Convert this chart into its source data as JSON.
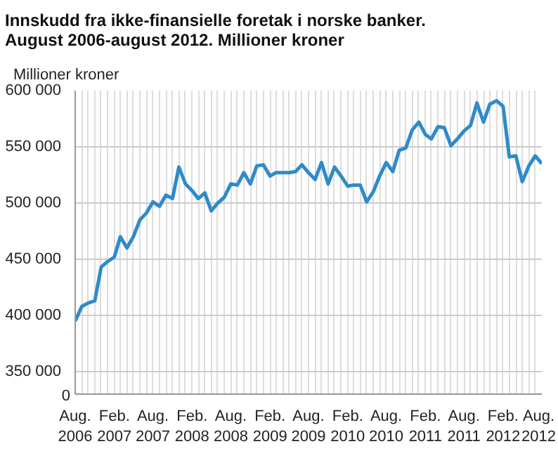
{
  "chart_data": {
    "type": "line",
    "annotations": [
      "0"
    ],
    "title": "Innskudd fra ikke-finansielle foretak i norske banker. August 2006-august 2012. Millioner kroner",
    "ylabel": "Millioner kroner",
    "x": [
      "2006-08",
      "2006-09",
      "2006-10",
      "2006-11",
      "2006-12",
      "2007-01",
      "2007-02",
      "2007-03",
      "2007-04",
      "2007-05",
      "2007-06",
      "2007-07",
      "2007-08",
      "2007-09",
      "2007-10",
      "2007-11",
      "2007-12",
      "2008-01",
      "2008-02",
      "2008-03",
      "2008-04",
      "2008-05",
      "2008-06",
      "2008-07",
      "2008-08",
      "2008-09",
      "2008-10",
      "2008-11",
      "2008-12",
      "2009-01",
      "2009-02",
      "2009-03",
      "2009-04",
      "2009-05",
      "2009-06",
      "2009-07",
      "2009-08",
      "2009-09",
      "2009-10",
      "2009-11",
      "2009-12",
      "2010-01",
      "2010-02",
      "2010-03",
      "2010-04",
      "2010-05",
      "2010-06",
      "2010-07",
      "2010-08",
      "2010-09",
      "2010-10",
      "2010-11",
      "2010-12",
      "2011-01",
      "2011-02",
      "2011-03",
      "2011-04",
      "2011-05",
      "2011-06",
      "2011-07",
      "2011-08",
      "2011-09",
      "2011-10",
      "2011-11",
      "2011-12",
      "2012-01",
      "2012-02",
      "2012-03",
      "2012-04",
      "2012-05",
      "2012-06",
      "2012-07",
      "2012-08"
    ],
    "series": [
      {
        "color": "#2f8bc9",
        "values": [
          395000,
          408000,
          411000,
          413000,
          443000,
          448000,
          452000,
          470000,
          460000,
          470000,
          485000,
          491000,
          501000,
          497000,
          507000,
          504000,
          532000,
          517000,
          511000,
          504000,
          509000,
          493000,
          500000,
          505000,
          517000,
          516000,
          527000,
          517000,
          533000,
          534000,
          524000,
          527000,
          527000,
          527000,
          528000,
          534000,
          527000,
          521000,
          536000,
          517000,
          532000,
          524000,
          515000,
          516000,
          516000,
          501000,
          510000,
          524000,
          536000,
          528000,
          547000,
          549000,
          565000,
          572000,
          561000,
          557000,
          568000,
          567000,
          551000,
          557000,
          564000,
          569000,
          589000,
          572000,
          588000,
          591000,
          586000,
          541000,
          542000,
          519000,
          533000,
          542000,
          535000
        ]
      }
    ],
    "xlim": [
      "2006-08",
      "2012-08"
    ],
    "xticks": [
      {
        "value": "2006-08",
        "label": "Aug.\n2006"
      },
      {
        "value": "2006-09",
        "label": null
      },
      {
        "value": "2006-10",
        "label": null
      },
      {
        "value": "2006-11",
        "label": null
      },
      {
        "value": "2006-12",
        "label": null
      },
      {
        "value": "2007-01",
        "label": null
      },
      {
        "value": "2007-02",
        "label": "Feb.\n2007"
      },
      {
        "value": "2007-03",
        "label": null
      },
      {
        "value": "2007-04",
        "label": null
      },
      {
        "value": "2007-05",
        "label": null
      },
      {
        "value": "2007-06",
        "label": null
      },
      {
        "value": "2007-07",
        "label": null
      },
      {
        "value": "2007-08",
        "label": "Aug.\n2007"
      },
      {
        "value": "2007-09",
        "label": null
      },
      {
        "value": "2007-10",
        "label": null
      },
      {
        "value": "2007-11",
        "label": null
      },
      {
        "value": "2007-12",
        "label": null
      },
      {
        "value": "2008-01",
        "label": null
      },
      {
        "value": "2008-02",
        "label": "Feb.\n2008"
      },
      {
        "value": "2008-03",
        "label": null
      },
      {
        "value": "2008-04",
        "label": null
      },
      {
        "value": "2008-05",
        "label": null
      },
      {
        "value": "2008-06",
        "label": null
      },
      {
        "value": "2008-07",
        "label": null
      },
      {
        "value": "2008-08",
        "label": "Aug.\n2008"
      },
      {
        "value": "2008-09",
        "label": null
      },
      {
        "value": "2008-10",
        "label": null
      },
      {
        "value": "2008-11",
        "label": null
      },
      {
        "value": "2008-12",
        "label": null
      },
      {
        "value": "2009-01",
        "label": null
      },
      {
        "value": "2009-02",
        "label": "Feb.\n2009"
      },
      {
        "value": "2009-03",
        "label": null
      },
      {
        "value": "2009-04",
        "label": null
      },
      {
        "value": "2009-05",
        "label": null
      },
      {
        "value": "2009-06",
        "label": null
      },
      {
        "value": "2009-07",
        "label": null
      },
      {
        "value": "2009-08",
        "label": "Aug.\n2009"
      },
      {
        "value": "2009-09",
        "label": null
      },
      {
        "value": "2009-10",
        "label": null
      },
      {
        "value": "2009-11",
        "label": null
      },
      {
        "value": "2009-12",
        "label": null
      },
      {
        "value": "2010-01",
        "label": null
      },
      {
        "value": "2010-02",
        "label": "Feb.\n2010"
      },
      {
        "value": "2010-03",
        "label": null
      },
      {
        "value": "2010-04",
        "label": null
      },
      {
        "value": "2010-05",
        "label": null
      },
      {
        "value": "2010-06",
        "label": null
      },
      {
        "value": "2010-07",
        "label": null
      },
      {
        "value": "2010-08",
        "label": "Aug.\n2010"
      },
      {
        "value": "2010-09",
        "label": null
      },
      {
        "value": "2010-10",
        "label": null
      },
      {
        "value": "2010-11",
        "label": null
      },
      {
        "value": "2010-12",
        "label": null
      },
      {
        "value": "2011-01",
        "label": null
      },
      {
        "value": "2011-02",
        "label": "Feb.\n2011"
      },
      {
        "value": "2011-03",
        "label": null
      },
      {
        "value": "2011-04",
        "label": null
      },
      {
        "value": "2011-05",
        "label": null
      },
      {
        "value": "2011-06",
        "label": null
      },
      {
        "value": "2011-07",
        "label": null
      },
      {
        "value": "2011-08",
        "label": "Aug.\n2011"
      },
      {
        "value": "2011-09",
        "label": null
      },
      {
        "value": "2011-10",
        "label": null
      },
      {
        "value": "2011-11",
        "label": null
      },
      {
        "value": "2011-12",
        "label": null
      },
      {
        "value": "2012-01",
        "label": null
      },
      {
        "value": "2012-02",
        "label": "Feb.\n2012"
      },
      {
        "value": "2012-03",
        "label": null
      },
      {
        "value": "2012-04",
        "label": null
      },
      {
        "value": "2012-05",
        "label": null
      },
      {
        "value": "2012-06",
        "label": null
      },
      {
        "value": "2012-07",
        "label": null
      },
      {
        "value": "2012-08",
        "label": "Aug.\n2012"
      }
    ],
    "ylim": [
      330000,
      600000
    ],
    "yticks": [
      {
        "value": 350000,
        "label": "350 000"
      },
      {
        "value": 400000,
        "label": "400 000"
      },
      {
        "value": 450000,
        "label": "450 000"
      },
      {
        "value": 500000,
        "label": "500 000"
      },
      {
        "value": 550000,
        "label": "550 000"
      },
      {
        "value": 600000,
        "label": "600 000"
      }
    ],
    "grid": true,
    "line_style": "solid"
  }
}
